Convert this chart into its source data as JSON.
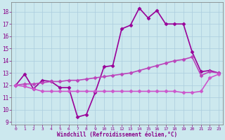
{
  "title": "",
  "xlabel": "Windchill (Refroidissement éolien,°C)",
  "xlim": [
    -0.5,
    23.5
  ],
  "ylim": [
    8.8,
    18.8
  ],
  "yticks": [
    9,
    10,
    11,
    12,
    13,
    14,
    15,
    16,
    17,
    18
  ],
  "xticks": [
    0,
    1,
    2,
    3,
    4,
    5,
    6,
    7,
    8,
    9,
    10,
    11,
    12,
    13,
    14,
    15,
    16,
    17,
    18,
    19,
    20,
    21,
    22,
    23
  ],
  "background_color": "#cce8ee",
  "grid_color": "#aaccdd",
  "series": [
    {
      "x": [
        0,
        1,
        2,
        3,
        4,
        5,
        6,
        7,
        8,
        9,
        10,
        11,
        12,
        13,
        14,
        15,
        16,
        17,
        18,
        19,
        20,
        21,
        22,
        23
      ],
      "y": [
        12.0,
        12.9,
        11.7,
        12.4,
        12.3,
        11.8,
        11.8,
        9.4,
        9.6,
        11.4,
        13.5,
        13.6,
        16.6,
        16.9,
        18.3,
        17.5,
        18.1,
        17.0,
        17.0,
        17.0,
        14.7,
        13.1,
        13.2,
        13.0
      ],
      "color": "#990099",
      "lw": 1.2,
      "marker": "D",
      "markersize": 2.5
    },
    {
      "x": [
        0,
        1,
        2,
        3,
        4,
        5,
        6,
        7,
        8,
        9,
        10,
        11,
        12,
        13,
        14,
        15,
        16,
        17,
        18,
        19,
        20,
        21,
        22,
        23
      ],
      "y": [
        12.0,
        12.1,
        12.1,
        12.2,
        12.3,
        12.3,
        12.4,
        12.4,
        12.5,
        12.6,
        12.7,
        12.8,
        12.9,
        13.0,
        13.2,
        13.4,
        13.6,
        13.8,
        14.0,
        14.1,
        14.3,
        12.8,
        13.1,
        13.0
      ],
      "color": "#bb44bb",
      "lw": 1.2,
      "marker": "D",
      "markersize": 2.5
    },
    {
      "x": [
        0,
        1,
        2,
        3,
        4,
        5,
        6,
        7,
        8,
        9,
        10,
        11,
        12,
        13,
        14,
        15,
        16,
        17,
        18,
        19,
        20,
        21,
        22,
        23
      ],
      "y": [
        12.0,
        11.9,
        11.7,
        11.5,
        11.5,
        11.5,
        11.5,
        11.5,
        11.5,
        11.5,
        11.5,
        11.5,
        11.5,
        11.5,
        11.5,
        11.5,
        11.5,
        11.5,
        11.5,
        11.4,
        11.4,
        11.5,
        12.6,
        12.9
      ],
      "color": "#cc55cc",
      "lw": 1.2,
      "marker": "D",
      "markersize": 2.5
    }
  ]
}
